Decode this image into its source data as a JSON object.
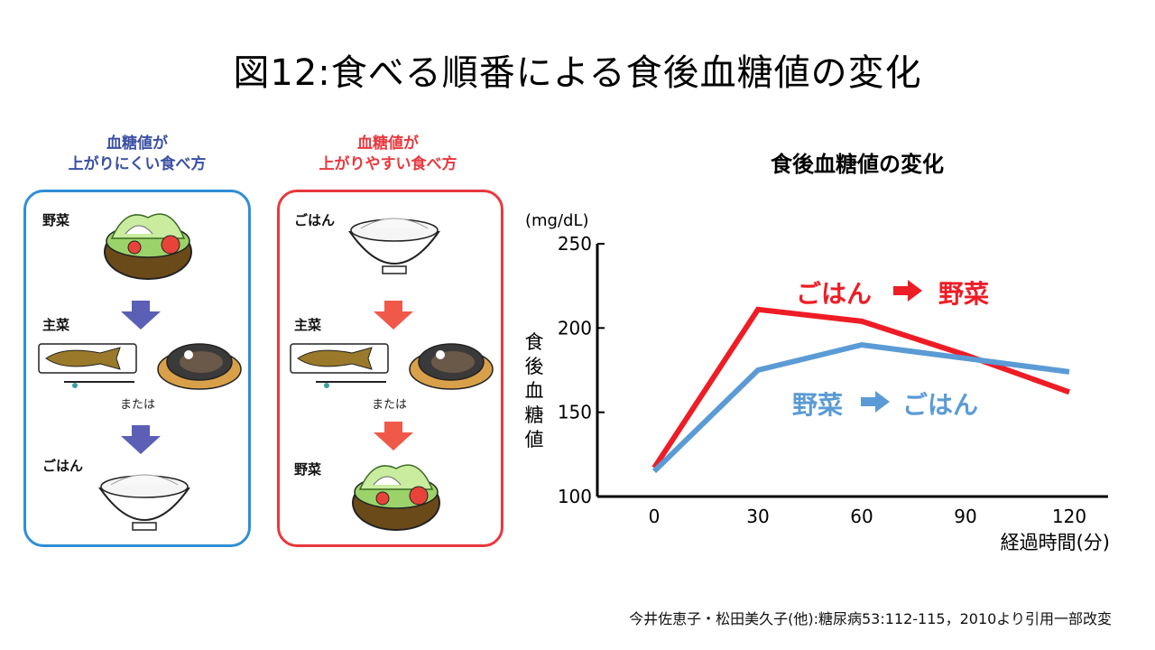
{
  "slide": {
    "title": "図12:食べる順番による食後血糖値の変化",
    "citation": "今井佐恵子・松田美久子(他):糖尿病53:112-115，2010より引用一部改変"
  },
  "panels": {
    "good": {
      "heading_line1": "血糖値が",
      "heading_line2": "上がりにくい食べ方",
      "color": "#2f8fd6",
      "heading_color": "#3a4fa3",
      "arrow_color": "#5b5fb5",
      "steps": [
        {
          "label": "野菜",
          "icon": "salad-bowl-icon"
        },
        {
          "label": "主菜",
          "icon": "grilled-fish-and-steak-icon"
        },
        {
          "label": "ごはん",
          "icon": "rice-bowl-icon"
        }
      ],
      "or_text": "または"
    },
    "bad": {
      "heading_line1": "血糖値が",
      "heading_line2": "上がりやすい食べ方",
      "color": "#e8383d",
      "arrow_color": "#f0584a",
      "steps": [
        {
          "label": "ごはん",
          "icon": "rice-bowl-icon"
        },
        {
          "label": "主菜",
          "icon": "grilled-fish-and-steak-icon"
        },
        {
          "label": "野菜",
          "icon": "salad-bowl-icon"
        }
      ],
      "or_text": "または"
    }
  },
  "chart_data": {
    "type": "line",
    "title": "食後血糖値の変化",
    "unit": "(mg/dL)",
    "ylabel": "食後血糖値",
    "xlabel": "経過時間(分)",
    "x_ticks": [
      0,
      30,
      60,
      90,
      120
    ],
    "y_ticks": [
      100,
      150,
      200,
      250
    ],
    "xlim": [
      0,
      120
    ],
    "ylim": [
      100,
      250
    ],
    "grid": false,
    "series": [
      {
        "name_from": "ごはん",
        "name_to": "野菜",
        "color": "#ee1c25",
        "x": [
          0,
          30,
          60,
          90,
          120
        ],
        "y": [
          117,
          211,
          204,
          184,
          162
        ]
      },
      {
        "name_from": "野菜",
        "name_to": "ごはん",
        "color": "#5b9bd5",
        "x": [
          0,
          30,
          60,
          90,
          120
        ],
        "y": [
          115,
          175,
          190,
          182,
          174
        ]
      }
    ]
  }
}
